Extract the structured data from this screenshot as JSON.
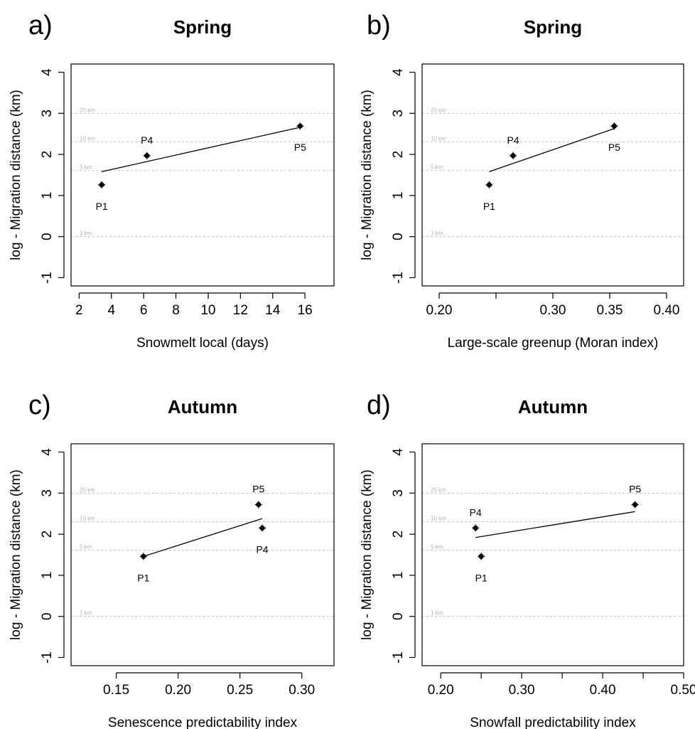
{
  "chart_data": [
    {
      "type": "scatter",
      "panel_letter": "a)",
      "title": "Spring",
      "xlabel": "Snowmelt local (days)",
      "ylabel": "log - Migration distance (km)",
      "xlim": [
        1.5,
        17.8
      ],
      "ylim": [
        -1.2,
        4.2
      ],
      "xticks": [
        2,
        4,
        6,
        8,
        10,
        12,
        14,
        16
      ],
      "xtick_labels": [
        "2",
        "4",
        "6",
        "8",
        "10",
        "12",
        "14",
        "16"
      ],
      "yticks": [
        -1,
        0,
        1,
        2,
        3,
        4
      ],
      "ytick_labels": [
        "-1",
        "0",
        "1",
        "2",
        "3",
        "4"
      ],
      "points": [
        {
          "label": "P1",
          "x": 3.4,
          "y": 1.26,
          "label_pos": "below"
        },
        {
          "label": "P4",
          "x": 6.2,
          "y": 1.97,
          "label_pos": "above"
        },
        {
          "label": "P5",
          "x": 15.7,
          "y": 2.69,
          "label_pos": "below"
        }
      ],
      "fit_line": {
        "x": [
          3.4,
          15.7
        ],
        "y": [
          1.58,
          2.66
        ]
      },
      "reference_lines": [
        {
          "y": 2.996,
          "label": "20 km"
        },
        {
          "y": 2.303,
          "label": "10 km"
        },
        {
          "y": 1.609,
          "label": "5 km"
        },
        {
          "y": 0.0,
          "label": "1 km"
        }
      ],
      "grid": false
    },
    {
      "type": "scatter",
      "panel_letter": "b)",
      "title": "Spring",
      "xlabel": "Large-scale greenup (Moran index)",
      "ylabel": "log - Migration distance (km)",
      "xlim": [
        0.185,
        0.415
      ],
      "ylim": [
        -1.2,
        4.2
      ],
      "xticks": [
        0.2,
        0.25,
        0.3,
        0.35,
        0.4
      ],
      "xtick_labels": [
        "0.20",
        "",
        "0.30",
        "0.35",
        "0.40"
      ],
      "yticks": [
        -1,
        0,
        1,
        2,
        3,
        4
      ],
      "ytick_labels": [
        "-1",
        "0",
        "1",
        "2",
        "3",
        "4"
      ],
      "points": [
        {
          "label": "P1",
          "x": 0.244,
          "y": 1.26,
          "label_pos": "below"
        },
        {
          "label": "P4",
          "x": 0.265,
          "y": 1.97,
          "label_pos": "above"
        },
        {
          "label": "P5",
          "x": 0.354,
          "y": 2.69,
          "label_pos": "below"
        }
      ],
      "fit_line": {
        "x": [
          0.244,
          0.354
        ],
        "y": [
          1.58,
          2.63
        ]
      },
      "reference_lines": [
        {
          "y": 2.996,
          "label": "20 km"
        },
        {
          "y": 2.303,
          "label": "10 km"
        },
        {
          "y": 1.609,
          "label": "5 km"
        },
        {
          "y": 0.0,
          "label": "1 km"
        }
      ],
      "grid": false
    },
    {
      "type": "scatter",
      "panel_letter": "c)",
      "title": "Autumn",
      "xlabel": "Senescence predictability index",
      "ylabel": "log - Migration distance (km)",
      "xlim": [
        0.1135,
        0.326
      ],
      "ylim": [
        -1.2,
        4.2
      ],
      "xticks": [
        0.15,
        0.2,
        0.25,
        0.3
      ],
      "xtick_labels": [
        "0.15",
        "0.20",
        "0.25",
        "0.30"
      ],
      "yticks": [
        -1,
        0,
        1,
        2,
        3,
        4
      ],
      "ytick_labels": [
        "-1",
        "0",
        "1",
        "2",
        "3",
        "4"
      ],
      "points": [
        {
          "label": "P1",
          "x": 0.172,
          "y": 1.46,
          "label_pos": "below"
        },
        {
          "label": "P5",
          "x": 0.265,
          "y": 2.72,
          "label_pos": "above"
        },
        {
          "label": "P4",
          "x": 0.268,
          "y": 2.15,
          "label_pos": "below"
        }
      ],
      "fit_line": {
        "x": [
          0.172,
          0.268
        ],
        "y": [
          1.46,
          2.38
        ]
      },
      "reference_lines": [
        {
          "y": 2.996,
          "label": "20 km"
        },
        {
          "y": 2.303,
          "label": "10 km"
        },
        {
          "y": 1.609,
          "label": "5 km"
        },
        {
          "y": 0.0,
          "label": "1 km"
        }
      ],
      "grid": false
    },
    {
      "type": "scatter",
      "panel_letter": "d)",
      "title": "Autumn",
      "xlabel": "Snowfall predictability index",
      "ylabel": "log - Migration distance (km)",
      "xlim": [
        0.177,
        0.5
      ],
      "ylim": [
        -1.2,
        4.2
      ],
      "xticks": [
        0.2,
        0.25,
        0.3,
        0.35,
        0.4,
        0.45,
        0.5
      ],
      "xtick_labels": [
        "0.20",
        "",
        "0.30",
        "",
        "0.40",
        "",
        "0.50"
      ],
      "yticks": [
        -1,
        0,
        1,
        2,
        3,
        4
      ],
      "ytick_labels": [
        "-1",
        "0",
        "1",
        "2",
        "3",
        "4"
      ],
      "points": [
        {
          "label": "P4",
          "x": 0.243,
          "y": 2.15,
          "label_pos": "above"
        },
        {
          "label": "P1",
          "x": 0.25,
          "y": 1.46,
          "label_pos": "below"
        },
        {
          "label": "P5",
          "x": 0.44,
          "y": 2.72,
          "label_pos": "above"
        }
      ],
      "fit_line": {
        "x": [
          0.243,
          0.44
        ],
        "y": [
          1.92,
          2.55
        ]
      },
      "reference_lines": [
        {
          "y": 2.996,
          "label": "20 km"
        },
        {
          "y": 2.303,
          "label": "10 km"
        },
        {
          "y": 1.609,
          "label": "5 km"
        },
        {
          "y": 0.0,
          "label": "1 km"
        }
      ],
      "grid": false
    }
  ]
}
